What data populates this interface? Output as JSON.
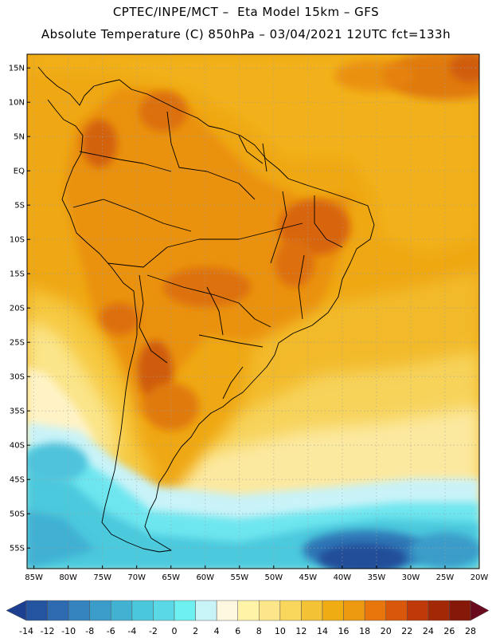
{
  "header": {
    "line1": "CPTEC/INPE/MCT –  Eta Model 15km – GFS",
    "line2": "Absolute Temperature (C) 850hPa – 03/04/2021 12UTC fct=133h"
  },
  "map": {
    "lon_range": [
      -86,
      -20
    ],
    "lat_range": [
      -58,
      17
    ],
    "lat_ticks": [
      {
        "value": 15,
        "label": "15N"
      },
      {
        "value": 10,
        "label": "10N"
      },
      {
        "value": 5,
        "label": "5N"
      },
      {
        "value": 0,
        "label": "EQ"
      },
      {
        "value": -5,
        "label": "5S"
      },
      {
        "value": -10,
        "label": "10S"
      },
      {
        "value": -15,
        "label": "15S"
      },
      {
        "value": -20,
        "label": "20S"
      },
      {
        "value": -25,
        "label": "25S"
      },
      {
        "value": -30,
        "label": "30S"
      },
      {
        "value": -35,
        "label": "35S"
      },
      {
        "value": -40,
        "label": "40S"
      },
      {
        "value": -45,
        "label": "45S"
      },
      {
        "value": -50,
        "label": "50S"
      },
      {
        "value": -55,
        "label": "55S"
      }
    ],
    "lon_ticks": [
      {
        "value": -85,
        "label": "85W"
      },
      {
        "value": -80,
        "label": "80W"
      },
      {
        "value": -75,
        "label": "75W"
      },
      {
        "value": -70,
        "label": "70W"
      },
      {
        "value": -65,
        "label": "65W"
      },
      {
        "value": -60,
        "label": "60W"
      },
      {
        "value": -55,
        "label": "55W"
      },
      {
        "value": -50,
        "label": "50W"
      },
      {
        "value": -45,
        "label": "45W"
      },
      {
        "value": -40,
        "label": "40W"
      },
      {
        "value": -35,
        "label": "35W"
      },
      {
        "value": -30,
        "label": "30W"
      },
      {
        "value": -25,
        "label": "25W"
      },
      {
        "value": -20,
        "label": "20W"
      }
    ],
    "gridlines": "dotted"
  },
  "colorbar": {
    "levels": [
      "-14",
      "-12",
      "-10",
      "-8",
      "-6",
      "-4",
      "-2",
      "0",
      "2",
      "4",
      "6",
      "8",
      "10",
      "12",
      "14",
      "16",
      "18",
      "20",
      "22",
      "24",
      "26",
      "28"
    ],
    "colors": [
      "#1d3f8f",
      "#24549f",
      "#2d6ab0",
      "#3584bf",
      "#3b9cc9",
      "#42b2d3",
      "#4bc7dc",
      "#5ad8e6",
      "#6ff0f0",
      "#c8f4f8",
      "#fff8e0",
      "#fff3a8",
      "#fde68a",
      "#f9d65c",
      "#f4c235",
      "#f0ad13",
      "#ee9a10",
      "#e8760c",
      "#d9570b",
      "#bf3a08",
      "#a32805",
      "#86180a",
      "#6a0a1e"
    ]
  }
}
